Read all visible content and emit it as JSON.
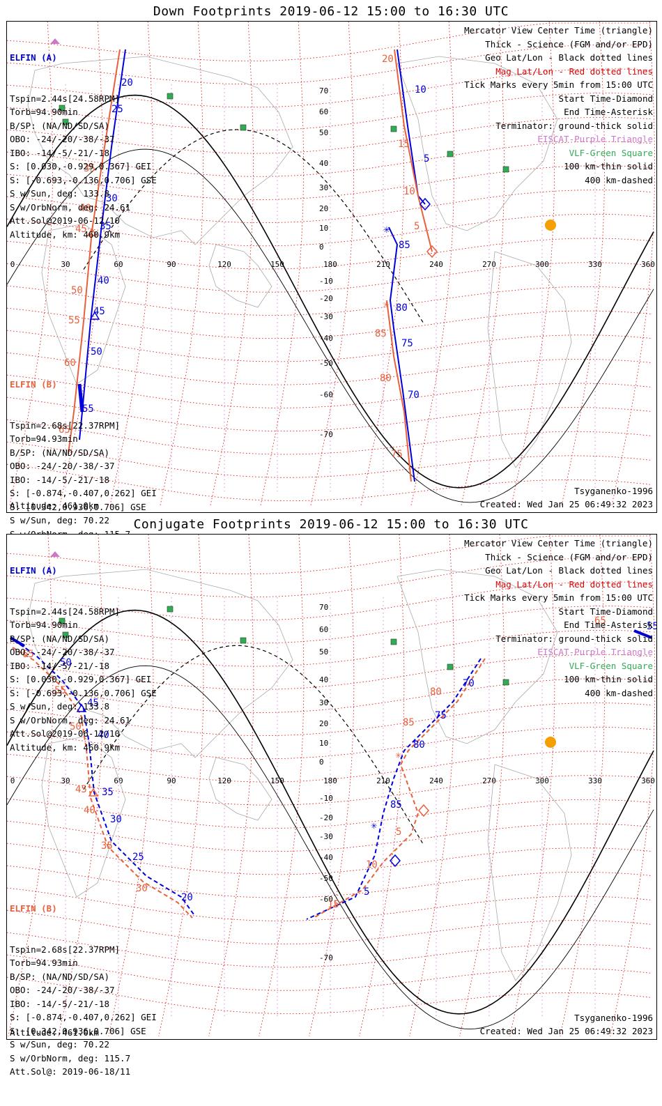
{
  "panels": [
    {
      "title": "Down Footprints 2019-06-12 15:00 to 16:30 UTC",
      "elfin_a": {
        "header": "ELFIN (A)",
        "lines": [
          "Tspin=2.44s[24.58RPM]",
          "Torb=94.90min",
          "B/SP: (NA/ND/SD/SA)",
          "OBO: -24/-20/-38/-37",
          "IBO: -14/-5/-21/-18",
          "S: [0.030,-0.929,0.367] GEI",
          "S: [-0.693,-0.136,0.706] GSE",
          "S w/Sun, deg: 133.8",
          "S w/OrbNorm, deg: 24.61",
          "Att.Sol@2019-06-12/10",
          "Altitude, km: 460.9km"
        ]
      },
      "elfin_b": {
        "header": "ELFIN (B)",
        "lines": [
          "Tspin=2.68s[22.37RPM]",
          "Torb=94.93min",
          "B/SP: (NA/ND/SD/SA)",
          "OBO: -24/-20/-38/-37",
          "IBO: -14/-5/-21/-18",
          "S: [-0.874,-0.407,0.262] GEI",
          "S: [0.342,0.936,0.706] GSE",
          "S w/Sun, deg: 70.22",
          "S w/OrbNorm, deg: 115.7",
          "Att.Sol@: 2019-06-18/11"
        ],
        "altitude": "Altitude: 461.0km"
      }
    },
    {
      "title": "Conjugate Footprints 2019-06-12 15:00 to 16:30 UTC",
      "elfin_a": {
        "header": "ELFIN (A)",
        "lines": [
          "Tspin=2.44s[24.58RPM]",
          "Torb=94.90min",
          "B/SP: (NA/ND/SD/SA)",
          "OBO: -24/-20/-38/-37",
          "IBO: -14/-5/-21/-18",
          "S: [0.030,-0.929,0.367] GEI",
          "S: [-0.693,-0.136,0.706] GSE",
          "S w/Sun, deg: 133.8",
          "S w/OrbNorm, deg: 24.61",
          "Att.Sol@2019-06-12/10",
          "Altitude, km: 460.9km"
        ]
      },
      "elfin_b": {
        "header": "ELFIN (B)",
        "lines": [
          "Tspin=2.68s[22.37RPM]",
          "Torb=94.93min",
          "B/SP: (NA/ND/SD/SA)",
          "OBO: -24/-20/-38/-37",
          "IBO: -14/-5/-21/-18",
          "S: [-0.874,-0.407,0.262] GEI",
          "S: [0.342,0.936,0.706] GSE",
          "S w/Sun, deg: 70.22",
          "S w/OrbNorm, deg: 115.7",
          "Att.Sol@: 2019-06-18/11"
        ],
        "altitude": "Altitude: 461.0km"
      }
    }
  ],
  "legend": [
    {
      "text": "Mercator View Center Time (triangle)",
      "color": "#000000"
    },
    {
      "text": "Thick - Science (FGM and/or EPD)",
      "color": "#000000"
    },
    {
      "text": "Geo Lat/Lon - Black dotted lines",
      "color": "#000000"
    },
    {
      "text": "Mag Lat/Lon - Red dotted lines",
      "color": "#e00000"
    },
    {
      "text": "Tick Marks every 5min from 15:00 UTC",
      "color": "#000000"
    },
    {
      "text": "Start Time-Diamond",
      "color": "#000000"
    },
    {
      "text": "End Time-Asterisk",
      "color": "#000000"
    },
    {
      "text": "Terminator: ground-thick solid",
      "color": "#000000"
    },
    {
      "text": "EISCAT-Purple Triangle",
      "color": "#cc77cc"
    },
    {
      "text": "VLF-Green Square",
      "color": "#33aa55"
    },
    {
      "text": "100 km-thin solid",
      "color": "#000000"
    },
    {
      "text": "400 km-dashed",
      "color": "#000000"
    }
  ],
  "model": "Tsyganenko-1996",
  "created": "Created: Wed Jan 25 06:49:32 2023",
  "map_axes": {
    "lon_labels": [
      "0",
      "30",
      "60",
      "90",
      "120",
      "150",
      "180",
      "210",
      "240",
      "270",
      "300",
      "330",
      "360"
    ],
    "lat_labels": [
      "70",
      "60",
      "50",
      "40",
      "30",
      "20",
      "10",
      "0",
      "-10",
      "-20",
      "-30",
      "-40",
      "-50",
      "-60",
      "-70"
    ]
  },
  "colors": {
    "elfin_a": "#0000dd",
    "elfin_b": "#e8603c",
    "mag_grid": "#dd0000",
    "geo_grid": "#cc66cc",
    "station": "#33aa55",
    "sun": "#f5a000"
  },
  "down_track_labels": {
    "a_west": [
      "20",
      "25",
      "30",
      "35",
      "40",
      "45",
      "50",
      "55"
    ],
    "b_west": [
      "35",
      "40",
      "45",
      "50",
      "55",
      "60",
      "65"
    ],
    "a_east": [
      "10",
      "5",
      "85",
      "80",
      "75",
      "70"
    ],
    "b_east": [
      "20",
      "15",
      "10",
      "5",
      "85",
      "80",
      "75"
    ]
  },
  "conj_track_labels": {
    "a_west": [
      "55",
      "50",
      "45",
      "40",
      "35",
      "30",
      "25",
      "20"
    ],
    "b_west": [
      "65",
      "55",
      "50",
      "45",
      "40",
      "35",
      "30"
    ],
    "a_east": [
      "70",
      "75",
      "80",
      "85",
      "5"
    ],
    "b_east": [
      "65",
      "80",
      "85",
      "5",
      "10",
      "15"
    ]
  }
}
